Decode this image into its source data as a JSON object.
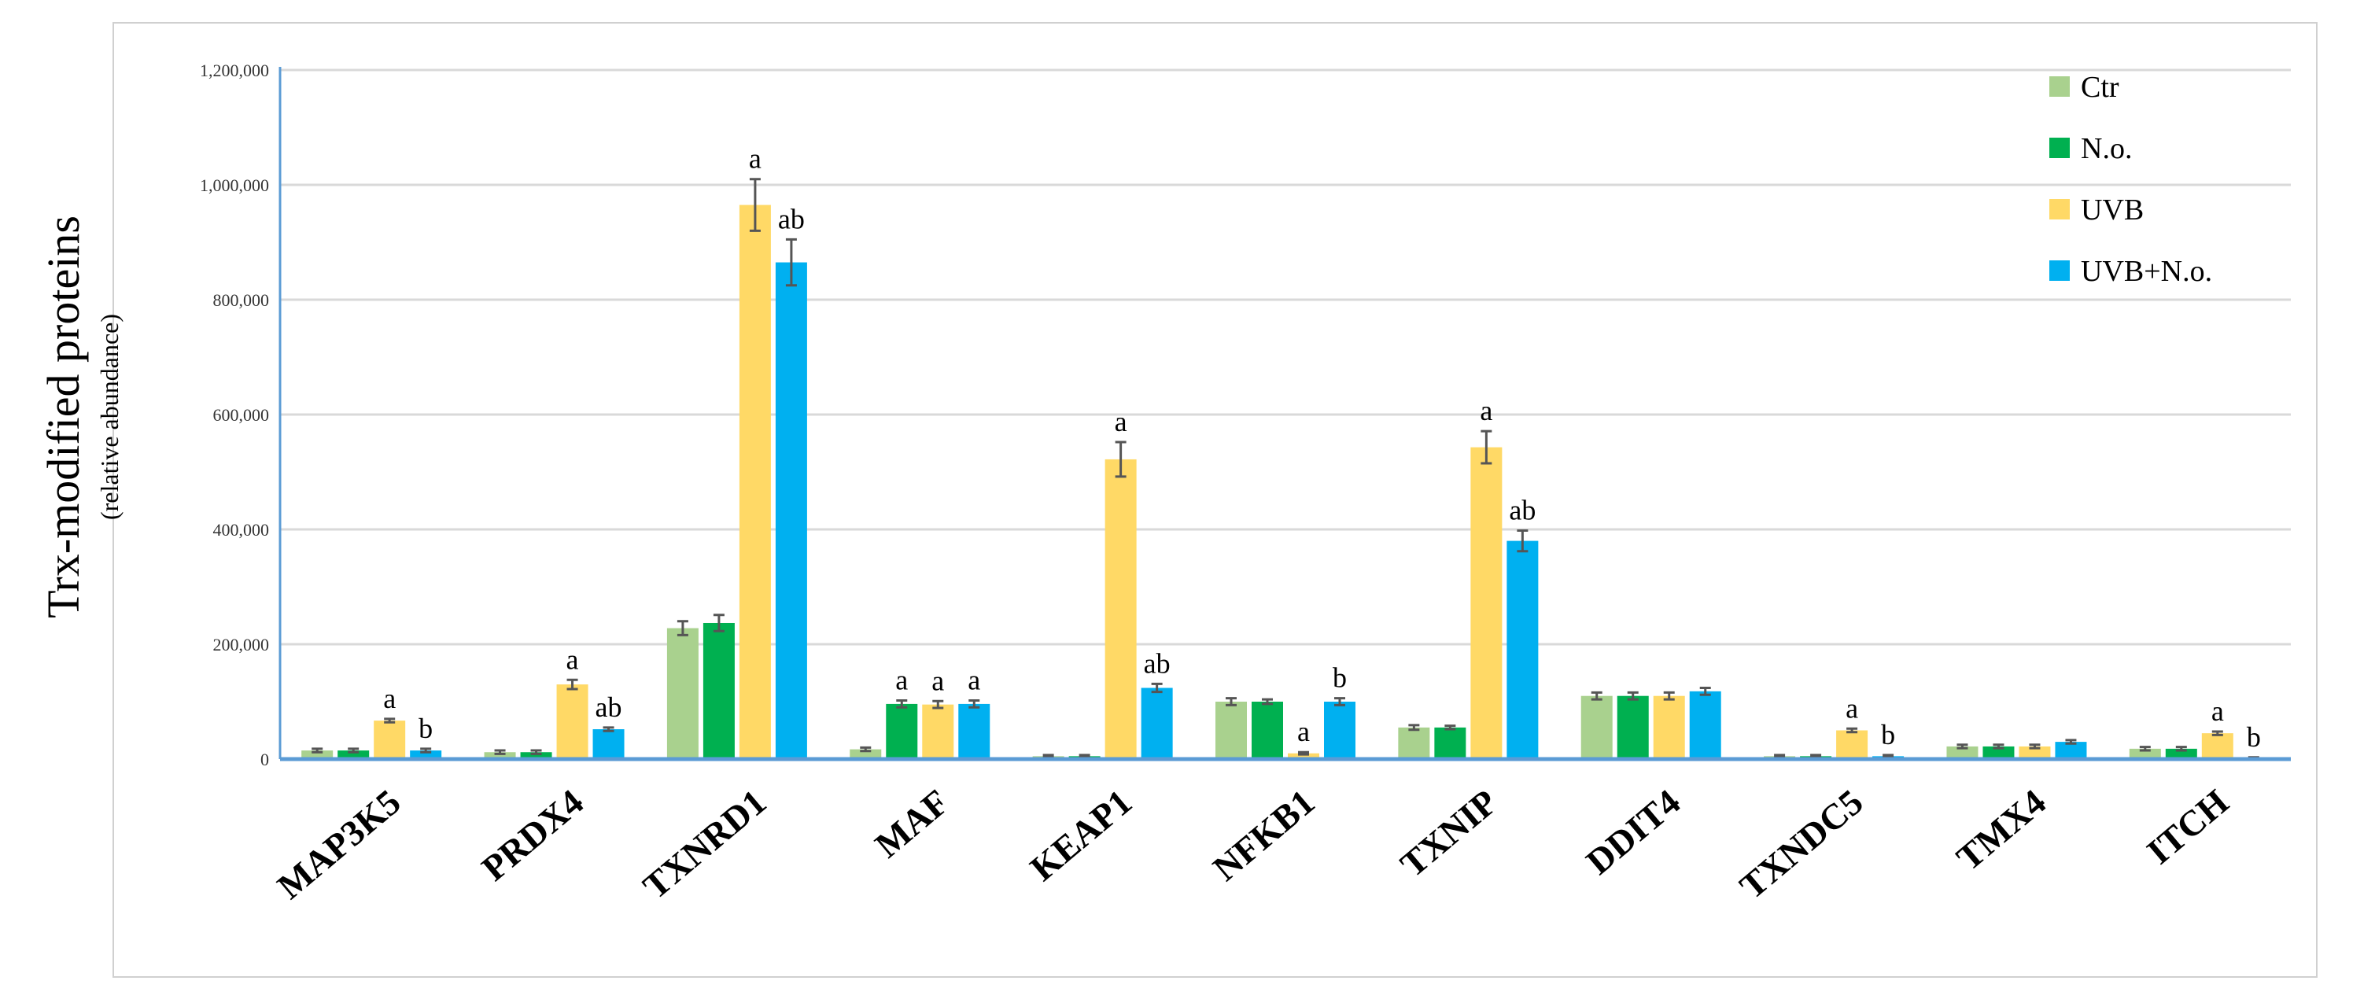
{
  "chart_data": {
    "type": "bar",
    "title": "",
    "xlabel": "",
    "ylabel": "Trx-modified proteins",
    "ylabel_sub": "(relative abundance)",
    "ylim": [
      0,
      1200000
    ],
    "yticks": [
      0,
      200000,
      400000,
      600000,
      800000,
      1000000,
      1200000
    ],
    "ytick_labels": [
      "0",
      "200,000",
      "400,000",
      "600,000",
      "800,000",
      "1,000,000",
      "1,200,000"
    ],
    "grid": true,
    "legend_position": "top-right",
    "categories": [
      "MAP3K5",
      "PRDX4",
      "TXNRD1",
      "MAF",
      "KEAP1",
      "NFKB1",
      "TXNIP",
      "DDIT4",
      "TXNDC5",
      "TMX4",
      "ITCH"
    ],
    "series": [
      {
        "name": "Ctr",
        "color": "#A9D18E",
        "values": [
          15000,
          12000,
          228000,
          17000,
          5000,
          100000,
          55000,
          110000,
          5000,
          22000,
          18000
        ],
        "errors": [
          3000,
          3000,
          12000,
          3000,
          2000,
          6000,
          4000,
          6000,
          2000,
          3000,
          3000
        ],
        "labels": [
          "",
          "",
          "",
          "",
          "",
          "",
          "",
          "",
          "",
          "",
          ""
        ]
      },
      {
        "name": "N.o.",
        "color": "#00B050",
        "values": [
          15000,
          12000,
          237000,
          96000,
          5000,
          100000,
          55000,
          110000,
          5000,
          22000,
          18000
        ],
        "errors": [
          3000,
          3000,
          14000,
          6000,
          2000,
          4000,
          3000,
          6000,
          2000,
          3000,
          3000
        ],
        "labels": [
          "",
          "",
          "",
          "a",
          "",
          "",
          "",
          "",
          "",
          "",
          ""
        ]
      },
      {
        "name": "UVB",
        "color": "#FFD966",
        "values": [
          67000,
          130000,
          965000,
          95000,
          522000,
          10000,
          543000,
          110000,
          50000,
          22000,
          45000
        ],
        "errors": [
          3000,
          8000,
          45000,
          6000,
          30000,
          2000,
          28000,
          6000,
          3000,
          3000,
          3000
        ],
        "labels": [
          "a",
          "a",
          "a",
          "a",
          "a",
          "a",
          "a",
          "",
          "a",
          "",
          "a"
        ]
      },
      {
        "name": "UVB+N.o.",
        "color": "#00B0F0",
        "values": [
          15000,
          52000,
          865000,
          96000,
          124000,
          100000,
          380000,
          118000,
          5000,
          30000,
          2000
        ],
        "errors": [
          3000,
          3000,
          40000,
          6000,
          7000,
          6000,
          18000,
          6000,
          2000,
          3000,
          1000
        ],
        "labels": [
          "b",
          "ab",
          "ab",
          "a",
          "ab",
          "b",
          "ab",
          "",
          "b",
          "",
          "b"
        ]
      }
    ]
  }
}
